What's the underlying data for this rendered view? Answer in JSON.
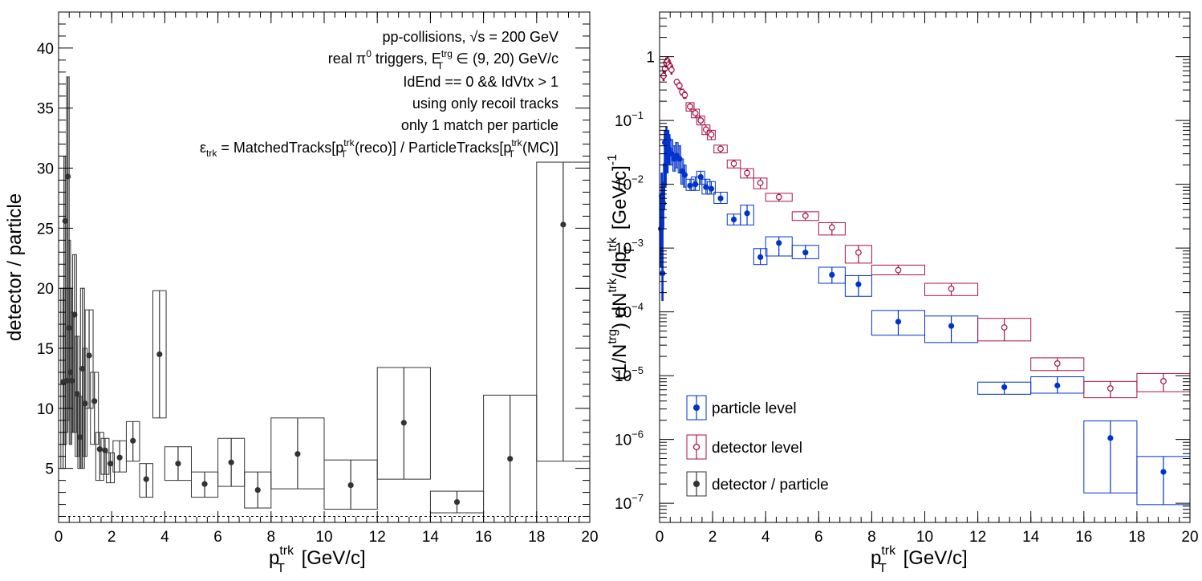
{
  "chart_data": [
    {
      "type": "scatter",
      "xlabel": "p_T^trk [GeV/c]",
      "ylabel": "detector / particle",
      "xlim": [
        0,
        20
      ],
      "ylim": [
        0.5,
        43
      ],
      "yscale": "linear",
      "x_ticks": [
        "0",
        "2",
        "4",
        "6",
        "8",
        "10",
        "12",
        "14",
        "16",
        "18",
        "20"
      ],
      "y_ticks": [
        "5",
        "10",
        "15",
        "20",
        "25",
        "30",
        "35",
        "40"
      ],
      "reference_line_y": 1,
      "annotations": [
        "pp-collisions, √s = 200 GeV",
        "real π0 triggers, E_T^trg ∈ (9, 20) GeV/c",
        "IdEnd == 0 && IdVtx > 1",
        "using only recoil tracks",
        "only 1 match per particle",
        "ε_trk = MatchedTracks[p_T^trk(reco)] / ParticleTracks[p_T^trk(MC)]"
      ],
      "series": [
        {
          "name": "detector / particle",
          "color": "#333333",
          "points": [
            {
              "x": 0.17,
              "y": 12.2,
              "w": 0.17,
              "lo": 5,
              "hi": 20
            },
            {
              "x": 0.25,
              "y": 25.6,
              "w": 0.1,
              "lo": 7,
              "hi": 31
            },
            {
              "x": 0.3,
              "y": 12.3,
              "w": 0.1,
              "lo": 8,
              "hi": 20
            },
            {
              "x": 0.35,
              "y": 29.3,
              "w": 0.1,
              "lo": 9,
              "hi": 37.6
            },
            {
              "x": 0.4,
              "y": 16.7,
              "w": 0.1,
              "lo": 10,
              "hi": 24
            },
            {
              "x": 0.45,
              "y": 13,
              "w": 0.1,
              "lo": 7,
              "hi": 20
            },
            {
              "x": 0.5,
              "y": 12.3,
              "w": 0.1,
              "lo": 8,
              "hi": 18
            },
            {
              "x": 0.6,
              "y": 17.8,
              "w": 0.15,
              "lo": 8,
              "hi": 22.8
            },
            {
              "x": 0.7,
              "y": 11.2,
              "w": 0.15,
              "lo": 6,
              "hi": 16
            },
            {
              "x": 0.8,
              "y": 7.6,
              "w": 0.15,
              "lo": 5,
              "hi": 11
            },
            {
              "x": 0.9,
              "y": 13.3,
              "w": 0.15,
              "lo": 5,
              "hi": 20
            },
            {
              "x": 1.0,
              "y": 10.4,
              "w": 0.15,
              "lo": 6,
              "hi": 15
            },
            {
              "x": 1.15,
              "y": 14.4,
              "w": 0.3,
              "lo": 10,
              "hi": 18.2
            },
            {
              "x": 1.35,
              "y": 10.6,
              "w": 0.3,
              "lo": 7,
              "hi": 13
            },
            {
              "x": 1.55,
              "y": 6.6,
              "w": 0.3,
              "lo": 4,
              "hi": 8
            },
            {
              "x": 1.75,
              "y": 6.5,
              "w": 0.3,
              "lo": 4.5,
              "hi": 7.5
            },
            {
              "x": 1.95,
              "y": 5.4,
              "w": 0.3,
              "lo": 3.8,
              "hi": 6.3
            },
            {
              "x": 2.3,
              "y": 5.9,
              "w": 0.5,
              "lo": 4.7,
              "hi": 7.3
            },
            {
              "x": 2.8,
              "y": 7.3,
              "w": 0.5,
              "lo": 5.6,
              "hi": 8.9
            },
            {
              "x": 3.3,
              "y": 4.1,
              "w": 0.5,
              "lo": 2.6,
              "hi": 5.4
            },
            {
              "x": 3.8,
              "y": 14.5,
              "w": 0.5,
              "lo": 9.2,
              "hi": 19.8
            },
            {
              "x": 4.5,
              "y": 5.4,
              "w": 1.0,
              "lo": 4.0,
              "hi": 6.8
            },
            {
              "x": 5.5,
              "y": 3.7,
              "w": 1.0,
              "lo": 2.6,
              "hi": 4.7
            },
            {
              "x": 6.5,
              "y": 5.5,
              "w": 1.0,
              "lo": 3.5,
              "hi": 7.5
            },
            {
              "x": 7.5,
              "y": 3.2,
              "w": 1.0,
              "lo": 1.7,
              "hi": 4.7
            },
            {
              "x": 9,
              "y": 6.2,
              "w": 2.0,
              "lo": 3.3,
              "hi": 9.2
            },
            {
              "x": 11,
              "y": 3.6,
              "w": 2.0,
              "lo": 1.6,
              "hi": 5.7
            },
            {
              "x": 13,
              "y": 8.8,
              "w": 2.0,
              "lo": 4.1,
              "hi": 13.4
            },
            {
              "x": 15,
              "y": 2.2,
              "w": 2.0,
              "lo": 1.3,
              "hi": 3.1
            },
            {
              "x": 17,
              "y": 5.8,
              "w": 2.0,
              "lo": 0.5,
              "hi": 11.1
            },
            {
              "x": 19,
              "y": 25.3,
              "w": 2.0,
              "lo": 5.6,
              "hi": 30.5
            }
          ]
        }
      ]
    },
    {
      "type": "scatter",
      "xlabel": "p_T^trk [GeV/c]",
      "ylabel": "(1/N^trg) dN^trk/dp_T^trk [GeV/c]^-1",
      "xlim": [
        0,
        20
      ],
      "ylim": [
        5e-08,
        5
      ],
      "yscale": "log",
      "x_ticks": [
        "0",
        "2",
        "4",
        "6",
        "8",
        "10",
        "12",
        "14",
        "16",
        "18",
        "20"
      ],
      "y_ticks": [
        "10^-7",
        "10^-6",
        "10^-5",
        "10^-4",
        "10^-3",
        "10^-2",
        "10^-1",
        "1"
      ],
      "legend": {
        "position": "bottom-left",
        "entries": [
          "particle level",
          "detector level",
          "detector / particle"
        ]
      },
      "series": [
        {
          "name": "particle level",
          "color": "#0033cc",
          "marker": "filled-circle",
          "points": [
            {
              "x": 0.05,
              "y": 0.002,
              "w": 0.05,
              "lo": 0.0005,
              "hi": 0.006
            },
            {
              "x": 0.08,
              "y": 0.0065,
              "w": 0.05,
              "lo": 0.002,
              "hi": 0.015
            },
            {
              "x": 0.11,
              "y": 0.0004,
              "w": 0.05,
              "lo": 0.00015,
              "hi": 0.002
            },
            {
              "x": 0.14,
              "y": 0.005,
              "w": 0.05,
              "lo": 0.002,
              "hi": 0.01
            },
            {
              "x": 0.17,
              "y": 0.01,
              "w": 0.05,
              "lo": 0.004,
              "hi": 0.02
            },
            {
              "x": 0.2,
              "y": 0.045,
              "w": 0.05,
              "lo": 0.02,
              "hi": 0.07
            },
            {
              "x": 0.23,
              "y": 0.02,
              "w": 0.05,
              "lo": 0.01,
              "hi": 0.04
            },
            {
              "x": 0.26,
              "y": 0.055,
              "w": 0.05,
              "lo": 0.03,
              "hi": 0.08
            },
            {
              "x": 0.3,
              "y": 0.03,
              "w": 0.05,
              "lo": 0.015,
              "hi": 0.05
            },
            {
              "x": 0.33,
              "y": 0.05,
              "w": 0.05,
              "lo": 0.03,
              "hi": 0.07
            },
            {
              "x": 0.37,
              "y": 0.035,
              "w": 0.05,
              "lo": 0.02,
              "hi": 0.06
            },
            {
              "x": 0.45,
              "y": 0.03,
              "w": 0.1,
              "lo": 0.02,
              "hi": 0.05
            },
            {
              "x": 0.55,
              "y": 0.025,
              "w": 0.1,
              "lo": 0.016,
              "hi": 0.04
            },
            {
              "x": 0.65,
              "y": 0.028,
              "w": 0.1,
              "lo": 0.018,
              "hi": 0.045
            },
            {
              "x": 0.75,
              "y": 0.025,
              "w": 0.1,
              "lo": 0.015,
              "hi": 0.04
            },
            {
              "x": 0.85,
              "y": 0.016,
              "w": 0.1,
              "lo": 0.01,
              "hi": 0.025
            },
            {
              "x": 0.95,
              "y": 0.014,
              "w": 0.1,
              "lo": 0.009,
              "hi": 0.02
            },
            {
              "x": 1.15,
              "y": 0.0095,
              "w": 0.3,
              "lo": 0.008,
              "hi": 0.012
            },
            {
              "x": 1.35,
              "y": 0.01,
              "w": 0.3,
              "lo": 0.008,
              "hi": 0.013
            },
            {
              "x": 1.55,
              "y": 0.013,
              "w": 0.3,
              "lo": 0.01,
              "hi": 0.016
            },
            {
              "x": 1.75,
              "y": 0.009,
              "w": 0.3,
              "lo": 0.007,
              "hi": 0.012
            },
            {
              "x": 1.95,
              "y": 0.0085,
              "w": 0.3,
              "lo": 0.007,
              "hi": 0.011
            },
            {
              "x": 2.3,
              "y": 0.006,
              "w": 0.5,
              "lo": 0.005,
              "hi": 0.0075
            },
            {
              "x": 2.8,
              "y": 0.0028,
              "w": 0.5,
              "lo": 0.0023,
              "hi": 0.0034
            },
            {
              "x": 3.3,
              "y": 0.0035,
              "w": 0.5,
              "lo": 0.0023,
              "hi": 0.0047
            },
            {
              "x": 3.8,
              "y": 0.00072,
              "w": 0.5,
              "lo": 0.00055,
              "hi": 0.00098
            },
            {
              "x": 4.5,
              "y": 0.0012,
              "w": 1.0,
              "lo": 0.00075,
              "hi": 0.0015
            },
            {
              "x": 5.5,
              "y": 0.00085,
              "w": 1.0,
              "lo": 0.00068,
              "hi": 0.0011
            },
            {
              "x": 6.5,
              "y": 0.00038,
              "w": 1.0,
              "lo": 0.00028,
              "hi": 0.0005
            },
            {
              "x": 7.5,
              "y": 0.00027,
              "w": 1.0,
              "lo": 0.000175,
              "hi": 0.00037
            },
            {
              "x": 9,
              "y": 7e-05,
              "w": 2.0,
              "lo": 4.3e-05,
              "hi": 0.000105
            },
            {
              "x": 11,
              "y": 6e-05,
              "w": 2.0,
              "lo": 3.3e-05,
              "hi": 8.6e-05
            },
            {
              "x": 13,
              "y": 6.6e-06,
              "w": 2.0,
              "lo": 5.1e-06,
              "hi": 7.9e-06
            },
            {
              "x": 15,
              "y": 7e-06,
              "w": 2.0,
              "lo": 5.3e-06,
              "hi": 9.6e-06
            },
            {
              "x": 17,
              "y": 1.05e-06,
              "w": 2.0,
              "lo": 1.45e-07,
              "hi": 1.95e-06
            },
            {
              "x": 19,
              "y": 3.1e-07,
              "w": 2.0,
              "lo": 9.5e-08,
              "hi": 5.4e-07
            }
          ]
        },
        {
          "name": "detector level",
          "color": "#aa1144",
          "marker": "open-circle",
          "points": [
            {
              "x": 0.15,
              "y": 0.5,
              "w": 0.05,
              "lo": 0.42,
              "hi": 0.6
            },
            {
              "x": 0.2,
              "y": 0.65,
              "w": 0.05,
              "lo": 0.55,
              "hi": 0.8
            },
            {
              "x": 0.25,
              "y": 0.8,
              "w": 0.05,
              "lo": 0.68,
              "hi": 0.95
            },
            {
              "x": 0.3,
              "y": 0.85,
              "w": 0.05,
              "lo": 0.72,
              "hi": 1.0
            },
            {
              "x": 0.35,
              "y": 0.75,
              "w": 0.05,
              "lo": 0.64,
              "hi": 0.88
            },
            {
              "x": 0.4,
              "y": 0.7,
              "w": 0.05,
              "lo": 0.6,
              "hi": 0.82
            },
            {
              "x": 0.45,
              "y": 0.62,
              "w": 0.05,
              "lo": 0.53,
              "hi": 0.72
            },
            {
              "x": 0.65,
              "y": 0.4,
              "w": 0.1,
              "lo": 0.36,
              "hi": 0.44
            },
            {
              "x": 0.75,
              "y": 0.35,
              "w": 0.1,
              "lo": 0.31,
              "hi": 0.39
            },
            {
              "x": 0.85,
              "y": 0.28,
              "w": 0.1,
              "lo": 0.25,
              "hi": 0.31
            },
            {
              "x": 0.95,
              "y": 0.25,
              "w": 0.1,
              "lo": 0.22,
              "hi": 0.28
            },
            {
              "x": 1.15,
              "y": 0.165,
              "w": 0.3,
              "lo": 0.14,
              "hi": 0.19
            },
            {
              "x": 1.35,
              "y": 0.13,
              "w": 0.3,
              "lo": 0.11,
              "hi": 0.15
            },
            {
              "x": 1.55,
              "y": 0.1,
              "w": 0.3,
              "lo": 0.085,
              "hi": 0.117
            },
            {
              "x": 1.75,
              "y": 0.072,
              "w": 0.3,
              "lo": 0.06,
              "hi": 0.085
            },
            {
              "x": 1.95,
              "y": 0.06,
              "w": 0.3,
              "lo": 0.05,
              "hi": 0.07
            },
            {
              "x": 2.3,
              "y": 0.036,
              "w": 0.5,
              "lo": 0.031,
              "hi": 0.041
            },
            {
              "x": 2.8,
              "y": 0.021,
              "w": 0.5,
              "lo": 0.018,
              "hi": 0.024
            },
            {
              "x": 3.3,
              "y": 0.015,
              "w": 0.5,
              "lo": 0.0125,
              "hi": 0.0175
            },
            {
              "x": 3.8,
              "y": 0.0105,
              "w": 0.5,
              "lo": 0.0085,
              "hi": 0.0125
            },
            {
              "x": 4.5,
              "y": 0.0063,
              "w": 1.0,
              "lo": 0.0054,
              "hi": 0.0072
            },
            {
              "x": 5.5,
              "y": 0.0032,
              "w": 1.0,
              "lo": 0.0027,
              "hi": 0.0037
            },
            {
              "x": 6.5,
              "y": 0.0021,
              "w": 1.0,
              "lo": 0.0016,
              "hi": 0.0025
            },
            {
              "x": 7.5,
              "y": 0.00085,
              "w": 1.0,
              "lo": 0.00058,
              "hi": 0.0011
            },
            {
              "x": 9,
              "y": 0.00045,
              "w": 2.0,
              "lo": 0.00038,
              "hi": 0.00054
            },
            {
              "x": 11,
              "y": 0.00023,
              "w": 2.0,
              "lo": 0.00018,
              "hi": 0.00028
            },
            {
              "x": 13,
              "y": 5.7e-05,
              "w": 2.0,
              "lo": 3.5e-05,
              "hi": 7.9e-05
            },
            {
              "x": 15,
              "y": 1.55e-05,
              "w": 2.0,
              "lo": 1.2e-05,
              "hi": 1.9e-05
            },
            {
              "x": 17,
              "y": 6.3e-06,
              "w": 2.0,
              "lo": 4.5e-06,
              "hi": 8.1e-06
            },
            {
              "x": 19,
              "y": 8.2e-06,
              "w": 2.0,
              "lo": 5.6e-06,
              "hi": 1.08e-05
            }
          ]
        }
      ]
    }
  ]
}
